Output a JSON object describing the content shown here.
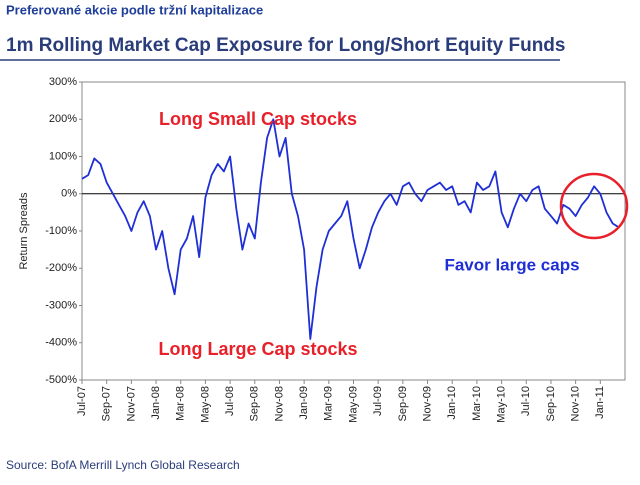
{
  "header": "Preferované akcie podle tržní kapitalizace",
  "source": "Source: BofA Merrill Lynch Global Research",
  "chart_data": {
    "type": "line",
    "title": "1m Rolling Market Cap Exposure for Long/Short Equity Funds",
    "y_label": "Return Spreads",
    "annotations": [
      {
        "text": "Long Small Cap stocks",
        "color": "#e8202a"
      },
      {
        "text": "Long Large Cap stocks",
        "color": "#e8202a"
      },
      {
        "text": "Favor large caps",
        "color": "#1f2fd6"
      }
    ],
    "categories": [
      "Jul-07",
      null,
      null,
      null,
      "Sep-07",
      null,
      null,
      null,
      "Nov-07",
      null,
      null,
      null,
      "Jan-08",
      null,
      null,
      null,
      "Mar-08",
      null,
      null,
      null,
      "May-08",
      null,
      null,
      null,
      "Jul-08",
      null,
      null,
      null,
      "Sep-08",
      null,
      null,
      null,
      "Nov-08",
      null,
      null,
      null,
      "Jan-09",
      null,
      null,
      null,
      "Mar-09",
      null,
      null,
      null,
      "May-09",
      null,
      null,
      null,
      "Jul-09",
      null,
      null,
      null,
      "Sep-09",
      null,
      null,
      null,
      "Nov-09",
      null,
      null,
      null,
      "Jan-10",
      null,
      null,
      null,
      "Mar-10",
      null,
      null,
      null,
      "May-10",
      null,
      null,
      null,
      "Jul-10",
      null,
      null,
      null,
      "Sep-10",
      null,
      null,
      null,
      "Nov-10",
      null,
      null,
      null,
      "Jan-11",
      null,
      null,
      null
    ],
    "series": [
      {
        "name": "Return Spreads",
        "color": "#1f2fd6",
        "values": [
          40,
          50,
          95,
          80,
          30,
          0,
          -30,
          -60,
          -100,
          -50,
          -20,
          -60,
          -150,
          -100,
          -200,
          -270,
          -150,
          -120,
          -60,
          -170,
          -10,
          50,
          80,
          60,
          100,
          -40,
          -150,
          -80,
          -120,
          30,
          150,
          200,
          100,
          150,
          0,
          -60,
          -150,
          -390,
          -250,
          -150,
          -100,
          -80,
          -60,
          -20,
          -120,
          -200,
          -150,
          -90,
          -50,
          -20,
          0,
          -30,
          20,
          30,
          0,
          -20,
          10,
          20,
          30,
          10,
          20,
          -30,
          -20,
          -50,
          30,
          10,
          20,
          60,
          -50,
          -90,
          -40,
          0,
          -20,
          10,
          20,
          -40,
          -60,
          -80,
          -30,
          -40,
          -60,
          -30,
          -10,
          20,
          0,
          -50,
          -80,
          -90
        ]
      }
    ],
    "ylim": [
      -500,
      300
    ],
    "yticks": [
      {
        "value": -500,
        "label": "-500%"
      },
      {
        "value": -400,
        "label": "-400%"
      },
      {
        "value": -300,
        "label": "-300%"
      },
      {
        "value": -200,
        "label": "-200%"
      },
      {
        "value": -100,
        "label": "-100%"
      },
      {
        "value": 0,
        "label": "0%"
      },
      {
        "value": 100,
        "label": "100%"
      },
      {
        "value": 200,
        "label": "200%"
      },
      {
        "value": 300,
        "label": "300%"
      }
    ],
    "zero_line": true
  }
}
